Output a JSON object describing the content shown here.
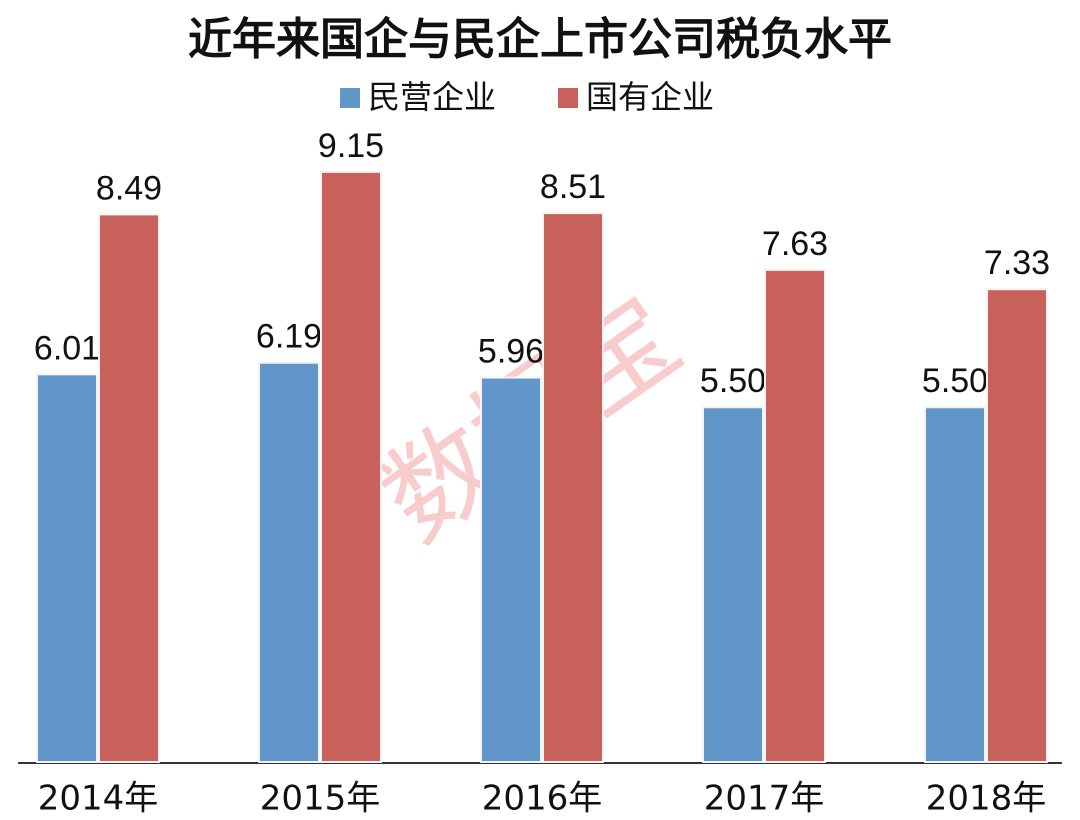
{
  "chart_data": {
    "type": "bar",
    "title": "近年来国企与民企上市公司税负水平",
    "categories": [
      "2014年",
      "2015年",
      "2016年",
      "2017年",
      "2018年"
    ],
    "series": [
      {
        "name": "民营企业",
        "color": "#6196c8",
        "values": [
          6.01,
          6.19,
          5.96,
          5.5,
          5.5
        ],
        "value_labels": [
          "6.01",
          "6.19",
          "5.96",
          "5.50",
          "5.50"
        ]
      },
      {
        "name": "国有企业",
        "color": "#c8615b",
        "values": [
          8.49,
          9.15,
          8.51,
          7.63,
          7.33
        ],
        "value_labels": [
          "8.49",
          "9.15",
          "8.51",
          "7.63",
          "7.33"
        ]
      }
    ],
    "watermark": "数据宝"
  }
}
